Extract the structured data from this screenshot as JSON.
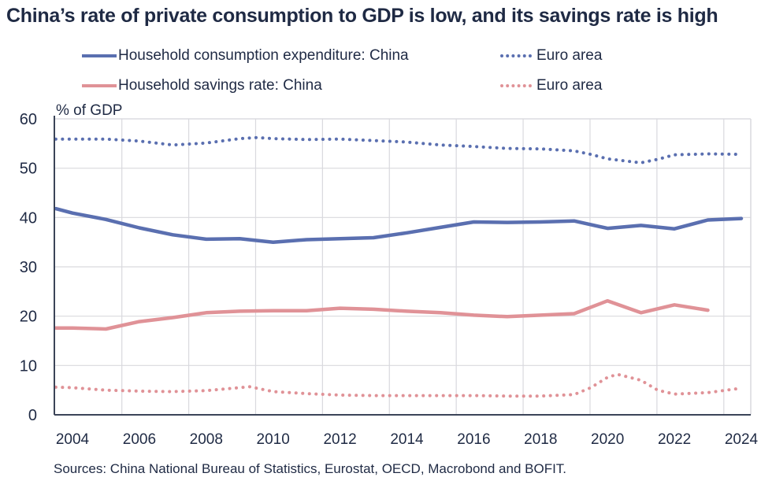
{
  "chart_data": {
    "type": "line",
    "title": "China’s rate of private consumption to GDP is low, and its savings rate is high",
    "ylabel": "% of GDP",
    "xlabel": "",
    "ylim": [
      0,
      60
    ],
    "yticks": [
      0,
      10,
      20,
      30,
      40,
      50,
      60
    ],
    "xlim": [
      2003.5,
      2024.9
    ],
    "xticks": [
      2004,
      2006,
      2008,
      2010,
      2012,
      2014,
      2016,
      2018,
      2020,
      2022,
      2024
    ],
    "grid": true,
    "legend_position": "top",
    "source": "Sources: China National Bureau of Statistics, Eurostat, OECD, Macrobond and BOFIT.",
    "series": [
      {
        "name": "Household consumption expenditure: China",
        "legend_label": "Household consumption expenditure: China",
        "style": "solid",
        "color": "#5a6fb0",
        "x": [
          2003.5,
          2004,
          2005,
          2006,
          2007,
          2008,
          2009,
          2010,
          2011,
          2012,
          2013,
          2014,
          2015,
          2016,
          2017,
          2018,
          2019,
          2020,
          2021,
          2022,
          2023,
          2024
        ],
        "values": [
          41.8,
          40.9,
          39.6,
          37.9,
          36.5,
          35.6,
          35.7,
          35.0,
          35.5,
          35.7,
          35.9,
          36.9,
          38.0,
          39.1,
          39.0,
          39.1,
          39.3,
          37.8,
          38.4,
          37.7,
          39.5,
          39.8
        ]
      },
      {
        "name": "Household consumption expenditure: Euro area",
        "legend_label": "Euro area",
        "style": "dotted",
        "color": "#5a6fb0",
        "x": [
          2003.5,
          2004,
          2005,
          2006,
          2007,
          2008,
          2009,
          2009.5,
          2010,
          2011,
          2012,
          2013,
          2014,
          2015,
          2016,
          2017,
          2018,
          2019,
          2019.5,
          2020,
          2020.5,
          2021,
          2021.5,
          2022,
          2023,
          2024
        ],
        "values": [
          55.9,
          55.9,
          55.9,
          55.5,
          54.7,
          55.1,
          56.0,
          56.2,
          56.0,
          55.8,
          55.9,
          55.6,
          55.3,
          54.7,
          54.4,
          54.0,
          53.9,
          53.5,
          52.8,
          51.9,
          51.5,
          51.1,
          51.8,
          52.7,
          52.9,
          52.8
        ]
      },
      {
        "name": "Household savings rate: China",
        "legend_label": "Household savings rate: China",
        "style": "solid",
        "color": "#e09297",
        "x": [
          2003.5,
          2004,
          2005,
          2006,
          2007,
          2008,
          2009,
          2010,
          2011,
          2012,
          2013,
          2014,
          2015,
          2016,
          2017,
          2018,
          2019,
          2020,
          2021,
          2022,
          2023
        ],
        "values": [
          17.6,
          17.6,
          17.4,
          18.9,
          19.7,
          20.7,
          21.0,
          21.1,
          21.1,
          21.6,
          21.4,
          21.0,
          20.7,
          20.2,
          19.9,
          20.2,
          20.5,
          23.1,
          20.7,
          22.3,
          21.2
        ]
      },
      {
        "name": "Household savings rate: Euro area",
        "legend_label": "Euro area",
        "style": "dotted",
        "color": "#e09297",
        "x": [
          2003.5,
          2004,
          2005,
          2006,
          2007,
          2008,
          2009,
          2009.3,
          2010,
          2011,
          2012,
          2013,
          2014,
          2015,
          2016,
          2017,
          2018,
          2019,
          2019.5,
          2020,
          2020.3,
          2021,
          2021.5,
          2022,
          2023,
          2024
        ],
        "values": [
          5.6,
          5.5,
          5.0,
          4.8,
          4.7,
          4.9,
          5.5,
          5.7,
          4.7,
          4.3,
          4.0,
          3.9,
          3.9,
          3.9,
          3.9,
          3.8,
          3.8,
          4.1,
          5.5,
          7.6,
          8.2,
          7.0,
          5.0,
          4.2,
          4.5,
          5.4
        ]
      }
    ]
  },
  "title": "China’s rate of private consumption to GDP is low, and its savings rate is high",
  "legend": [
    {
      "label": "Household consumption expenditure: China"
    },
    {
      "label": "Euro area"
    },
    {
      "label": "Household savings rate: China"
    },
    {
      "label": "Euro area"
    }
  ],
  "unit_label": "% of GDP",
  "sources": "Sources: China National Bureau of Statistics, Eurostat, OECD, Macrobond and BOFIT."
}
